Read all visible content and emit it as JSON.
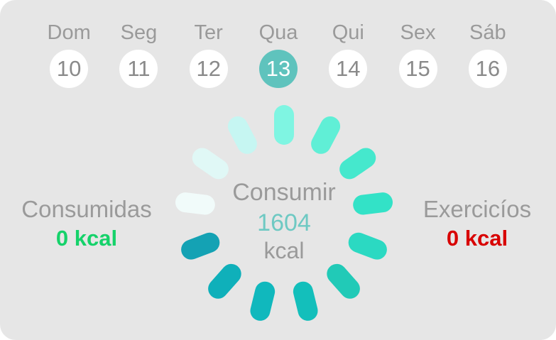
{
  "week": {
    "days": [
      {
        "name": "Dom",
        "num": "10"
      },
      {
        "name": "Seg",
        "num": "11"
      },
      {
        "name": "Ter",
        "num": "12"
      },
      {
        "name": "Qua",
        "num": "13",
        "selected": true
      },
      {
        "name": "Qui",
        "num": "14"
      },
      {
        "name": "Sex",
        "num": "15"
      },
      {
        "name": "Sáb",
        "num": "16"
      }
    ],
    "selected_color": "#5fc3bd"
  },
  "consumed": {
    "label": "Consumidas",
    "value": "0 kcal",
    "color": "#15d26a"
  },
  "exercise": {
    "label": "Exercicíos",
    "value": "0 kcal",
    "color": "#d80000"
  },
  "center": {
    "title": "Consumir",
    "value": "1604",
    "unit": "kcal"
  },
  "spinner": {
    "segment_colors": [
      "#7ff5e2",
      "#60efd6",
      "#45e8cd",
      "#33e2c7",
      "#2bd9c2",
      "#21cab7",
      "#13bfbb",
      "#10b8bd",
      "#0fb0ba",
      "#14a2b4",
      "#f1fbfa",
      "#e0f8f6",
      "#c6f6f2"
    ]
  }
}
